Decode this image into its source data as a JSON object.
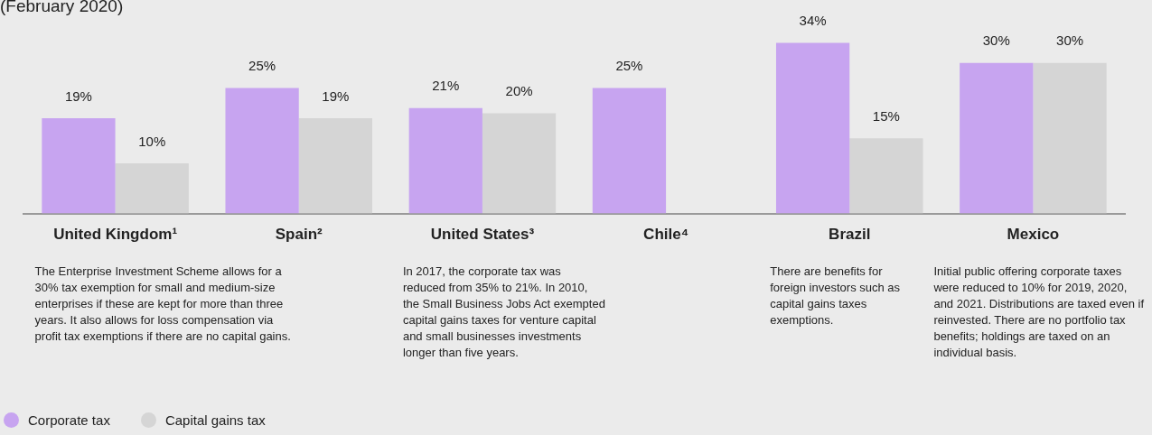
{
  "chart_data": {
    "type": "bar",
    "title": "(February 2020)",
    "categories": [
      "United Kingdom¹",
      "Spain²",
      "United States³",
      "Chile⁴",
      "Brazil",
      "Mexico"
    ],
    "series": [
      {
        "name": "Corporate tax",
        "color": "#c7a4f0",
        "values": [
          19,
          25,
          21,
          25,
          34,
          30
        ],
        "value_labels": [
          "19%",
          "25%",
          "21%",
          "25%",
          "34%",
          "30%"
        ]
      },
      {
        "name": "Capital gains tax",
        "color": "#d5d5d5",
        "values": [
          10,
          19,
          20,
          null,
          15,
          30
        ],
        "value_labels": [
          "10%",
          "19%",
          "20%",
          null,
          "15%",
          "30%"
        ]
      }
    ],
    "annotations": [
      "The Enterprise Investment Scheme allows for a 30% tax exemption for small and medium-size enterprises if these are kept for more than three years. It also allows for loss compensation via profit tax exemptions if there are no capital gains.",
      "In 2017, the corporate tax was reduced from 35% to 21%. In 2010, the Small Business Jobs Act exempted capital gains taxes for venture capital and small businesses investments longer than five years.",
      "There are benefits for foreign investors such as capital gains taxes exemptions.",
      "Initial public offering corporate taxes were reduced to 10% for 2019, 2020, and 2021. Distributions are taxed even if reinvested. There are no portfolio tax benefits; holdings are taxed on an individual basis."
    ],
    "legend": "bottom left",
    "grid": false
  }
}
